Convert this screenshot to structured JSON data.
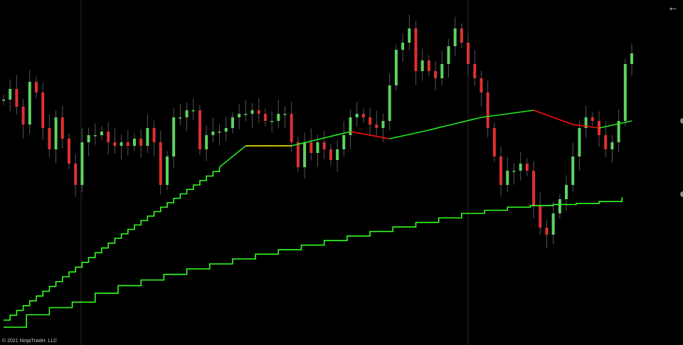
{
  "copyright": "© 2021 NinjaTrader, LLC",
  "back_icon": "arrow-left-icon",
  "colors": {
    "background": "#000000",
    "up": "#5fd35f",
    "down": "#e03030",
    "wick": "#555555",
    "ma_up": "#22ee22",
    "ma_down": "#ff1010",
    "ma_flat": "#ffee00",
    "step": "#33ff22",
    "grid": "#2a2a2a"
  },
  "chart_data": {
    "type": "candlestick",
    "title": "",
    "xlabel": "",
    "ylabel": "",
    "ylim": [
      0,
      97
    ],
    "grid": "vertical lines only",
    "closes": [
      69,
      72,
      67,
      62,
      74,
      71,
      61,
      55,
      64,
      58,
      51,
      45,
      57,
      59,
      59,
      60,
      57,
      56,
      57,
      56,
      58,
      56,
      61,
      57,
      45,
      53,
      64,
      64,
      66,
      66,
      55,
      59,
      60,
      60,
      61,
      64,
      65,
      65,
      66,
      65,
      63,
      63,
      65,
      65,
      57,
      50,
      57,
      54,
      57,
      55,
      52,
      55,
      59,
      64,
      65,
      64,
      62,
      61,
      63,
      73,
      83,
      85,
      89,
      77,
      80,
      77,
      75,
      79,
      84,
      89,
      85,
      79,
      75,
      71,
      61,
      53,
      45,
      49,
      49,
      51,
      49,
      39,
      33,
      31,
      37,
      41,
      45,
      53,
      61,
      64,
      63,
      59,
      55,
      57,
      63,
      79,
      82
    ],
    "moving_average": {
      "x": [
        0,
        17,
        33,
        37,
        44,
        53,
        59,
        64,
        73,
        81,
        87,
        91,
        96
      ],
      "values": [
        7,
        30,
        50,
        56,
        56,
        60,
        58,
        60,
        64,
        66,
        62,
        61,
        63
      ]
    },
    "lower_step_line": {
      "x": [
        0,
        5,
        9,
        16,
        27,
        37,
        48,
        59,
        70,
        78,
        90,
        96
      ],
      "values": [
        5,
        10,
        11,
        16,
        21,
        25,
        29,
        33,
        37,
        39,
        40,
        42
      ]
    }
  }
}
